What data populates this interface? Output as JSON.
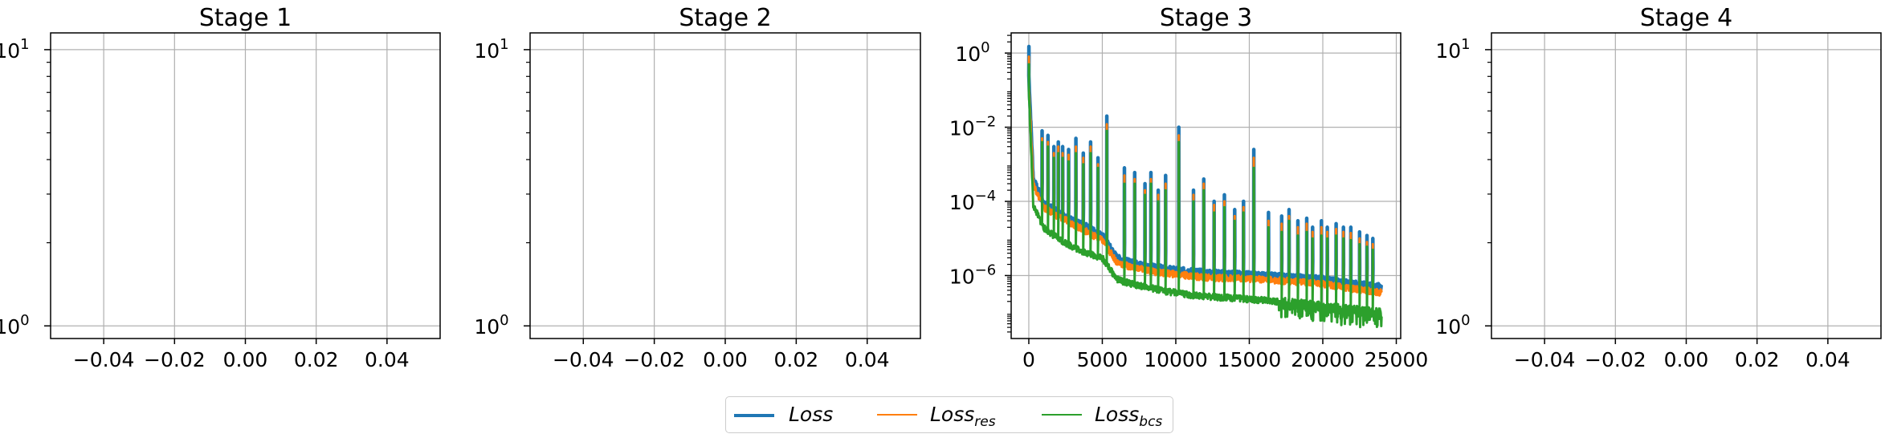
{
  "chart_data": [
    {
      "type": "line",
      "title": "Stage 1",
      "xlabel": "",
      "ylabel": "",
      "yscale": "log",
      "grid": true,
      "xlim": [
        -0.055,
        0.055
      ],
      "ylim": [
        0.9,
        11.5
      ],
      "x_ticks": [
        -0.04,
        -0.02,
        0.0,
        0.02,
        0.04
      ],
      "x_tick_labels": [
        "−0.04",
        "−0.02",
        "0.00",
        "0.02",
        "0.04"
      ],
      "y_major_ticks": [
        1,
        10
      ],
      "y_tick_labels": [
        "10^0",
        "10^1"
      ],
      "series": []
    },
    {
      "type": "line",
      "title": "Stage 2",
      "xlabel": "",
      "ylabel": "",
      "yscale": "log",
      "grid": true,
      "xlim": [
        -0.055,
        0.055
      ],
      "ylim": [
        0.9,
        11.5
      ],
      "x_ticks": [
        -0.04,
        -0.02,
        0.0,
        0.02,
        0.04
      ],
      "x_tick_labels": [
        "−0.04",
        "−0.02",
        "0.00",
        "0.02",
        "0.04"
      ],
      "y_major_ticks": [
        1,
        10
      ],
      "y_tick_labels": [
        "10^0",
        "10^1"
      ],
      "series": []
    },
    {
      "type": "line",
      "title": "Stage 3",
      "xlabel": "",
      "ylabel": "",
      "yscale": "log",
      "grid": true,
      "xlim": [
        -1200,
        25300
      ],
      "ylim": [
        2e-08,
        3.5
      ],
      "x_ticks": [
        0,
        5000,
        10000,
        15000,
        20000,
        25000
      ],
      "x_tick_labels": [
        "0",
        "5000",
        "10000",
        "15000",
        "20000",
        "25000"
      ],
      "y_major_ticks": [
        1e-06,
        0.0001,
        0.01,
        1
      ],
      "y_tick_labels": [
        "10^−6",
        "10^−4",
        "10^−2",
        "10^0"
      ],
      "series": [
        {
          "name": "Loss",
          "color": "#1f77b4",
          "baseline": [
            [
              0,
              0.25
            ],
            [
              300,
              0.0004
            ],
            [
              1000,
              9e-05
            ],
            [
              2000,
              5e-05
            ],
            [
              3000,
              3e-05
            ],
            [
              4000,
              2e-05
            ],
            [
              5000,
              1.2e-05
            ],
            [
              6000,
              3e-06
            ],
            [
              7000,
              2.2e-06
            ],
            [
              8000,
              1.8e-06
            ],
            [
              9000,
              1.6e-06
            ],
            [
              10000,
              1.4e-06
            ],
            [
              11000,
              1.3e-06
            ],
            [
              12000,
              1.2e-06
            ],
            [
              14000,
              1.1e-06
            ],
            [
              16000,
              1e-06
            ],
            [
              18000,
              9e-07
            ],
            [
              20000,
              8e-07
            ],
            [
              22000,
              6e-07
            ],
            [
              24000,
              5e-07
            ]
          ],
          "spikes": [
            [
              0,
              1.5
            ],
            [
              900,
              0.008
            ],
            [
              1300,
              0.006
            ],
            [
              1700,
              0.003
            ],
            [
              2000,
              0.004
            ],
            [
              2300,
              0.003
            ],
            [
              2700,
              0.0025
            ],
            [
              3200,
              0.005
            ],
            [
              3700,
              0.002
            ],
            [
              4200,
              0.004
            ],
            [
              4700,
              0.0015
            ],
            [
              5300,
              0.02
            ],
            [
              6500,
              0.0008
            ],
            [
              7200,
              0.0006
            ],
            [
              7900,
              0.0003
            ],
            [
              8300,
              0.0006
            ],
            [
              8800,
              0.0002
            ],
            [
              9300,
              0.0005
            ],
            [
              10200,
              0.01
            ],
            [
              11200,
              0.0002
            ],
            [
              11900,
              0.0004
            ],
            [
              12600,
              0.0001
            ],
            [
              13300,
              0.00015
            ],
            [
              14000,
              6e-05
            ],
            [
              14600,
              0.0001
            ],
            [
              15300,
              0.0025
            ],
            [
              16300,
              5e-05
            ],
            [
              17200,
              4e-05
            ],
            [
              17700,
              6e-05
            ],
            [
              18300,
              3e-05
            ],
            [
              18900,
              3.5e-05
            ],
            [
              19300,
              2e-05
            ],
            [
              19900,
              3e-05
            ],
            [
              20300,
              2e-05
            ],
            [
              20900,
              2.5e-05
            ],
            [
              21400,
              2e-05
            ],
            [
              21900,
              2e-05
            ],
            [
              22500,
              1.5e-05
            ],
            [
              23000,
              1.2e-05
            ],
            [
              23400,
              1e-05
            ]
          ]
        },
        {
          "name": "Loss_res",
          "color": "#ff7f0e",
          "baseline": [
            [
              0,
              0.15
            ],
            [
              300,
              0.0003
            ],
            [
              1000,
              7e-05
            ],
            [
              2000,
              4e-05
            ],
            [
              3000,
              2.5e-05
            ],
            [
              4000,
              1.5e-05
            ],
            [
              5000,
              9e-06
            ],
            [
              6000,
              2.3e-06
            ],
            [
              7000,
              1.7e-06
            ],
            [
              8000,
              1.4e-06
            ],
            [
              9000,
              1.2e-06
            ],
            [
              10000,
              1.1e-06
            ],
            [
              11000,
              1e-06
            ],
            [
              12000,
              9e-07
            ],
            [
              14000,
              8.5e-07
            ],
            [
              16000,
              8e-07
            ],
            [
              18000,
              7e-07
            ],
            [
              20000,
              6e-07
            ],
            [
              22000,
              4.5e-07
            ],
            [
              24000,
              3.5e-07
            ]
          ],
          "spikes": [
            [
              0,
              0.8
            ],
            [
              900,
              0.005
            ],
            [
              1300,
              0.004
            ],
            [
              1700,
              0.002
            ],
            [
              2000,
              0.003
            ],
            [
              2300,
              0.002
            ],
            [
              2700,
              0.0018
            ],
            [
              3200,
              0.003
            ],
            [
              3700,
              0.0015
            ],
            [
              4200,
              0.003
            ],
            [
              4700,
              0.001
            ],
            [
              5300,
              0.012
            ],
            [
              6500,
              0.0005
            ],
            [
              7200,
              0.0004
            ],
            [
              7900,
              0.0002
            ],
            [
              8300,
              0.0004
            ],
            [
              8800,
              0.00015
            ],
            [
              9300,
              0.0003
            ],
            [
              10200,
              0.006
            ],
            [
              11200,
              0.00015
            ],
            [
              11900,
              0.0003
            ],
            [
              12600,
              8e-05
            ],
            [
              13300,
              0.0001
            ],
            [
              14000,
              4e-05
            ],
            [
              14600,
              7e-05
            ],
            [
              15300,
              0.0015
            ],
            [
              16300,
              3e-05
            ],
            [
              17200,
              2.5e-05
            ],
            [
              17700,
              4e-05
            ],
            [
              18300,
              2e-05
            ],
            [
              18900,
              2.5e-05
            ],
            [
              19300,
              1.5e-05
            ],
            [
              19900,
              2e-05
            ],
            [
              20300,
              1.5e-05
            ],
            [
              20900,
              1.8e-05
            ],
            [
              21400,
              1.5e-05
            ],
            [
              21900,
              1.4e-05
            ],
            [
              22500,
              1e-05
            ],
            [
              23000,
              8e-06
            ],
            [
              23400,
              7e-06
            ]
          ]
        },
        {
          "name": "Loss_bcs",
          "color": "#2ca02c",
          "baseline": [
            [
              0,
              0.1
            ],
            [
              300,
              8e-05
            ],
            [
              1000,
              2e-05
            ],
            [
              2000,
              1e-05
            ],
            [
              3000,
              6e-06
            ],
            [
              4000,
              4e-06
            ],
            [
              5000,
              3e-06
            ],
            [
              6000,
              8e-07
            ],
            [
              7000,
              6e-07
            ],
            [
              8000,
              5e-07
            ],
            [
              9000,
              4e-07
            ],
            [
              10000,
              3.5e-07
            ],
            [
              11000,
              3e-07
            ],
            [
              12000,
              2.8e-07
            ],
            [
              14000,
              2.5e-07
            ],
            [
              16000,
              2.2e-07
            ],
            [
              18000,
              1.8e-07
            ],
            [
              20000,
              1.5e-07
            ],
            [
              22000,
              1.2e-07
            ],
            [
              24000,
              1e-07
            ]
          ],
          "spikes": [
            [
              0,
              0.5
            ],
            [
              900,
              0.004
            ],
            [
              1300,
              0.003
            ],
            [
              1700,
              0.0015
            ],
            [
              2000,
              0.002
            ],
            [
              2300,
              0.0015
            ],
            [
              2700,
              0.0012
            ],
            [
              3200,
              0.002
            ],
            [
              3700,
              0.001
            ],
            [
              4200,
              0.002
            ],
            [
              4700,
              0.0008
            ],
            [
              5300,
              0.008
            ],
            [
              6500,
              0.0003
            ],
            [
              7200,
              0.0003
            ],
            [
              7900,
              0.00015
            ],
            [
              8300,
              0.0003
            ],
            [
              8800,
              0.0001
            ],
            [
              9300,
              0.0002
            ],
            [
              10200,
              0.004
            ],
            [
              11200,
              0.0001
            ],
            [
              11900,
              0.0002
            ],
            [
              12600,
              5e-05
            ],
            [
              13300,
              7e-05
            ],
            [
              14000,
              3e-05
            ],
            [
              14600,
              5e-05
            ],
            [
              15300,
              0.0008
            ],
            [
              16300,
              2e-05
            ],
            [
              17200,
              1.5e-05
            ],
            [
              17700,
              3e-05
            ],
            [
              18300,
              1.2e-05
            ],
            [
              18900,
              1.5e-05
            ],
            [
              19300,
              1e-05
            ],
            [
              19900,
              1.2e-05
            ],
            [
              20300,
              1e-05
            ],
            [
              20900,
              1.2e-05
            ],
            [
              21400,
              1e-05
            ],
            [
              21900,
              9e-06
            ],
            [
              22500,
              7e-06
            ],
            [
              23000,
              6e-06
            ],
            [
              23400,
              5e-06
            ]
          ]
        }
      ]
    },
    {
      "type": "line",
      "title": "Stage 4",
      "xlabel": "",
      "ylabel": "",
      "yscale": "log",
      "grid": true,
      "xlim": [
        -0.055,
        0.055
      ],
      "ylim": [
        0.9,
        11.5
      ],
      "x_ticks": [
        -0.04,
        -0.02,
        0.0,
        0.02,
        0.04
      ],
      "x_tick_labels": [
        "−0.04",
        "−0.02",
        "0.00",
        "0.02",
        "0.04"
      ],
      "y_major_ticks": [
        1,
        10
      ],
      "y_tick_labels": [
        "10^0",
        "10^1"
      ],
      "series": []
    }
  ],
  "legend": {
    "placement": "bottom-center",
    "items": [
      {
        "base": "Loss",
        "sub": "",
        "color": "#1f77b4",
        "width": "thick"
      },
      {
        "base": "Loss",
        "sub": "res",
        "color": "#ff7f0e",
        "width": "thin"
      },
      {
        "base": "Loss",
        "sub": "bcs",
        "color": "#2ca02c",
        "width": "thin"
      }
    ]
  }
}
